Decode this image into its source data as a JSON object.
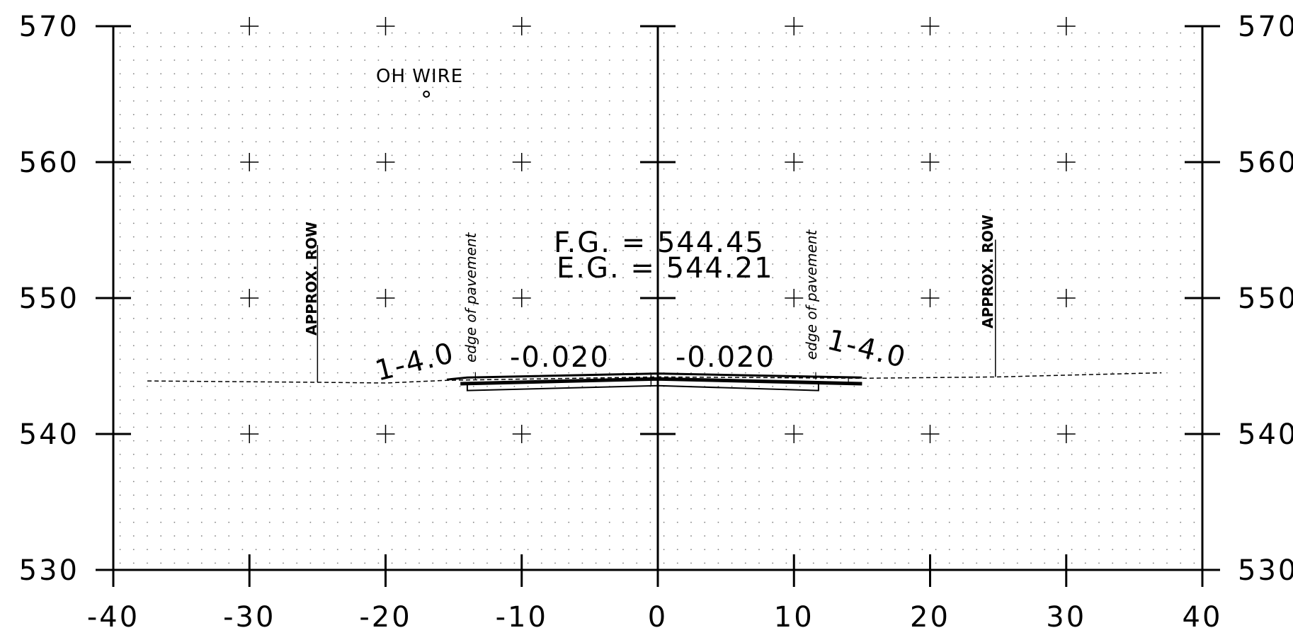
{
  "chart_data": {
    "type": "cross-section",
    "x_ticks": [
      "-40",
      "-30",
      "-20",
      "-10",
      "0",
      "10",
      "20",
      "30",
      "40"
    ],
    "y_ticks": [
      "530",
      "540",
      "550",
      "560",
      "570"
    ],
    "xlim": [
      -40,
      40
    ],
    "ylim": [
      530,
      570
    ],
    "grid": "dotted",
    "annotations": {
      "fg": "F.G.  = 544.45",
      "eg": "E.G.  = 544.21",
      "slope_left": "-0.020",
      "slope_right": "-0.020",
      "side_slope_left": "1-4.0",
      "side_slope_right": "1-4.0",
      "edge_left": "edge of pavement",
      "edge_right": "edge of pavement",
      "row_left": "APPROX. ROW",
      "row_right": "APPROX. ROW",
      "wire": "OH WIRE"
    },
    "existing_ground": [
      [
        -37.5,
        543.9
      ],
      [
        -25,
        543.8
      ],
      [
        -20,
        543.75
      ],
      [
        -15.5,
        543.95
      ],
      [
        0,
        544.2
      ],
      [
        15,
        544.1
      ],
      [
        25,
        544.2
      ],
      [
        37,
        544.5
      ]
    ],
    "pavement_top": [
      [
        -15.5,
        544.0
      ],
      [
        -14,
        544.15
      ],
      [
        0,
        544.45
      ],
      [
        15,
        544.15
      ]
    ],
    "row_left_x": -25,
    "row_right_x": 24.8,
    "wire_point": [
      -17,
      565
    ]
  }
}
